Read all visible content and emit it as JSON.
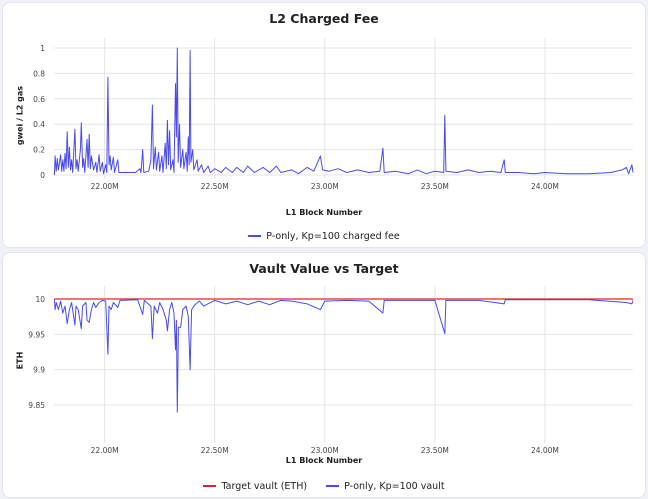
{
  "chart_data": [
    {
      "type": "line",
      "title": "L2 Charged Fee",
      "xlabel": "L1 Block Number",
      "ylabel": "gwei / L2 gas",
      "xlim": [
        21.77,
        24.4
      ],
      "ylim": [
        0,
        1.05
      ],
      "xticks": [
        {
          "v": 22.0,
          "label": "22.00M"
        },
        {
          "v": 22.5,
          "label": "22.50M"
        },
        {
          "v": 23.0,
          "label": "23.00M"
        },
        {
          "v": 23.5,
          "label": "23.50M"
        },
        {
          "v": 24.0,
          "label": "24.00M"
        }
      ],
      "yticks": [
        {
          "v": 0,
          "label": "0"
        },
        {
          "v": 0.2,
          "label": "0.2"
        },
        {
          "v": 0.4,
          "label": "0.4"
        },
        {
          "v": 0.6,
          "label": "0.6"
        },
        {
          "v": 0.8,
          "label": "0.8"
        },
        {
          "v": 1,
          "label": "1"
        }
      ],
      "grid": true,
      "legend_position": "bottom",
      "series": [
        {
          "name": "P-only, Kp=100 charged fee",
          "color": "#4a4af0",
          "points": [
            [
              21.772,
              0.0
            ],
            [
              21.775,
              0.15
            ],
            [
              21.78,
              0.03
            ],
            [
              21.785,
              0.13
            ],
            [
              21.79,
              0.04
            ],
            [
              21.8,
              0.16
            ],
            [
              21.805,
              0.03
            ],
            [
              21.81,
              0.12
            ],
            [
              21.815,
              0.03
            ],
            [
              21.82,
              0.17
            ],
            [
              21.825,
              0.05
            ],
            [
              21.83,
              0.34
            ],
            [
              21.835,
              0.06
            ],
            [
              21.84,
              0.22
            ],
            [
              21.845,
              0.04
            ],
            [
              21.85,
              0.12
            ],
            [
              21.855,
              0.02
            ],
            [
              21.865,
              0.36
            ],
            [
              21.87,
              0.05
            ],
            [
              21.875,
              0.12
            ],
            [
              21.88,
              0.03
            ],
            [
              21.89,
              0.2
            ],
            [
              21.894,
              0.41
            ],
            [
              21.9,
              0.06
            ],
            [
              21.905,
              0.13
            ],
            [
              21.91,
              0.02
            ],
            [
              21.92,
              0.28
            ],
            [
              21.925,
              0.06
            ],
            [
              21.93,
              0.32
            ],
            [
              21.935,
              0.05
            ],
            [
              21.94,
              0.15
            ],
            [
              21.95,
              0.04
            ],
            [
              21.96,
              0.1
            ],
            [
              21.965,
              0.02
            ],
            [
              21.975,
              0.16
            ],
            [
              21.98,
              0.03
            ],
            [
              21.99,
              0.1
            ],
            [
              21.995,
              0.01
            ],
            [
              22.005,
              0.08
            ],
            [
              22.01,
              0.02
            ],
            [
              22.015,
              0.77
            ],
            [
              22.02,
              0.08
            ],
            [
              22.025,
              0.15
            ],
            [
              22.03,
              0.04
            ],
            [
              22.04,
              0.14
            ],
            [
              22.045,
              0.02
            ],
            [
              22.06,
              0.12
            ],
            [
              22.065,
              0.02
            ],
            [
              22.1,
              0.02
            ],
            [
              22.14,
              0.02
            ],
            [
              22.16,
              0.05
            ],
            [
              22.165,
              0.02
            ],
            [
              22.173,
              0.2
            ],
            [
              22.178,
              0.02
            ],
            [
              22.2,
              0.03
            ],
            [
              22.21,
              0.12
            ],
            [
              22.217,
              0.55
            ],
            [
              22.222,
              0.05
            ],
            [
              22.23,
              0.22
            ],
            [
              22.235,
              0.04
            ],
            [
              22.245,
              0.18
            ],
            [
              22.25,
              0.03
            ],
            [
              22.26,
              0.15
            ],
            [
              22.265,
              0.02
            ],
            [
              22.275,
              0.25
            ],
            [
              22.28,
              0.05
            ],
            [
              22.285,
              0.43
            ],
            [
              22.29,
              0.08
            ],
            [
              22.295,
              0.35
            ],
            [
              22.3,
              0.04
            ],
            [
              22.31,
              0.12
            ],
            [
              22.315,
              0.02
            ],
            [
              22.322,
              0.72
            ],
            [
              22.326,
              0.3
            ],
            [
              22.33,
              1.0
            ],
            [
              22.334,
              0.1
            ],
            [
              22.34,
              0.4
            ],
            [
              22.345,
              0.06
            ],
            [
              22.355,
              0.2
            ],
            [
              22.36,
              0.05
            ],
            [
              22.37,
              0.18
            ],
            [
              22.375,
              0.03
            ],
            [
              22.38,
              0.3
            ],
            [
              22.384,
              0.08
            ],
            [
              22.388,
              0.98
            ],
            [
              22.392,
              0.1
            ],
            [
              22.4,
              0.2
            ],
            [
              22.405,
              0.04
            ],
            [
              22.42,
              0.12
            ],
            [
              22.425,
              0.03
            ],
            [
              22.44,
              0.08
            ],
            [
              22.45,
              0.02
            ],
            [
              22.47,
              0.07
            ],
            [
              22.48,
              0.02
            ],
            [
              22.5,
              0.05
            ],
            [
              22.53,
              0.02
            ],
            [
              22.55,
              0.06
            ],
            [
              22.58,
              0.02
            ],
            [
              22.6,
              0.06
            ],
            [
              22.63,
              0.02
            ],
            [
              22.65,
              0.07
            ],
            [
              22.68,
              0.02
            ],
            [
              22.72,
              0.06
            ],
            [
              22.75,
              0.02
            ],
            [
              22.78,
              0.07
            ],
            [
              22.8,
              0.02
            ],
            [
              22.85,
              0.04
            ],
            [
              22.88,
              0.01
            ],
            [
              22.92,
              0.06
            ],
            [
              22.95,
              0.03
            ],
            [
              22.98,
              0.15
            ],
            [
              22.99,
              0.04
            ],
            [
              23.02,
              0.03
            ],
            [
              23.06,
              0.05
            ],
            [
              23.1,
              0.02
            ],
            [
              23.15,
              0.04
            ],
            [
              23.2,
              0.02
            ],
            [
              23.25,
              0.03
            ],
            [
              23.264,
              0.21
            ],
            [
              23.27,
              0.02
            ],
            [
              23.32,
              0.03
            ],
            [
              23.38,
              0.01
            ],
            [
              23.42,
              0.04
            ],
            [
              23.46,
              0.01
            ],
            [
              23.5,
              0.03
            ],
            [
              23.54,
              0.02
            ],
            [
              23.545,
              0.47
            ],
            [
              23.55,
              0.03
            ],
            [
              23.6,
              0.02
            ],
            [
              23.65,
              0.04
            ],
            [
              23.7,
              0.02
            ],
            [
              23.75,
              0.03
            ],
            [
              23.8,
              0.02
            ],
            [
              23.815,
              0.12
            ],
            [
              23.82,
              0.02
            ],
            [
              23.88,
              0.02
            ],
            [
              23.95,
              0.01
            ],
            [
              24.0,
              0.02
            ],
            [
              24.1,
              0.01
            ],
            [
              24.2,
              0.01
            ],
            [
              24.3,
              0.02
            ],
            [
              24.35,
              0.04
            ],
            [
              24.37,
              0.06
            ],
            [
              24.38,
              0.01
            ],
            [
              24.395,
              0.08
            ],
            [
              24.4,
              0.02
            ]
          ]
        }
      ]
    },
    {
      "type": "line",
      "title": "Vault Value vs Target",
      "xlabel": "L1 Block Number",
      "ylabel": "ETH",
      "xlim": [
        21.77,
        24.4
      ],
      "ylim": [
        9.81,
        10.005
      ],
      "xticks": [
        {
          "v": 22.0,
          "label": "22.00M"
        },
        {
          "v": 22.5,
          "label": "22.50M"
        },
        {
          "v": 23.0,
          "label": "23.00M"
        },
        {
          "v": 23.5,
          "label": "23.50M"
        },
        {
          "v": 24.0,
          "label": "24.00M"
        }
      ],
      "yticks": [
        {
          "v": 9.85,
          "label": "9.85"
        },
        {
          "v": 9.9,
          "label": "9.9"
        },
        {
          "v": 9.95,
          "label": "9.95"
        },
        {
          "v": 10,
          "label": "10"
        }
      ],
      "grid": true,
      "legend_position": "bottom",
      "series": [
        {
          "name": "Target vault (ETH)",
          "color": "#d62728",
          "points": [
            [
              21.772,
              10.0
            ],
            [
              24.4,
              10.0
            ]
          ]
        },
        {
          "name": "P-only, Kp=100 vault",
          "color": "#4a4af0",
          "points": [
            [
              21.772,
              10.0
            ],
            [
              21.775,
              9.985
            ],
            [
              21.78,
              9.995
            ],
            [
              21.79,
              9.985
            ],
            [
              21.8,
              9.997
            ],
            [
              21.81,
              9.98
            ],
            [
              21.82,
              9.99
            ],
            [
              21.83,
              9.965
            ],
            [
              21.84,
              9.985
            ],
            [
              21.85,
              9.995
            ],
            [
              21.865,
              9.963
            ],
            [
              21.87,
              9.99
            ],
            [
              21.88,
              9.985
            ],
            [
              21.894,
              9.958
            ],
            [
              21.9,
              9.99
            ],
            [
              21.915,
              9.995
            ],
            [
              21.92,
              9.97
            ],
            [
              21.93,
              9.967
            ],
            [
              21.94,
              9.985
            ],
            [
              21.95,
              9.995
            ],
            [
              21.96,
              9.988
            ],
            [
              21.975,
              9.995
            ],
            [
              21.99,
              9.998
            ],
            [
              22.005,
              9.997
            ],
            [
              22.015,
              9.922
            ],
            [
              22.02,
              9.99
            ],
            [
              22.03,
              9.985
            ],
            [
              22.04,
              9.995
            ],
            [
              22.06,
              9.988
            ],
            [
              22.07,
              9.998
            ],
            [
              22.15,
              9.999
            ],
            [
              22.173,
              9.978
            ],
            [
              22.18,
              9.998
            ],
            [
              22.21,
              9.99
            ],
            [
              22.217,
              9.944
            ],
            [
              22.225,
              9.99
            ],
            [
              22.24,
              9.98
            ],
            [
              22.25,
              9.995
            ],
            [
              22.265,
              9.985
            ],
            [
              22.28,
              9.97
            ],
            [
              22.285,
              9.955
            ],
            [
              22.295,
              9.985
            ],
            [
              22.305,
              9.995
            ],
            [
              22.315,
              9.98
            ],
            [
              22.322,
              9.928
            ],
            [
              22.326,
              9.97
            ],
            [
              22.33,
              9.84
            ],
            [
              22.335,
              9.96
            ],
            [
              22.345,
              9.96
            ],
            [
              22.355,
              9.985
            ],
            [
              22.37,
              9.99
            ],
            [
              22.38,
              9.975
            ],
            [
              22.388,
              9.9
            ],
            [
              22.395,
              9.985
            ],
            [
              22.41,
              9.992
            ],
            [
              22.43,
              9.997
            ],
            [
              22.45,
              9.99
            ],
            [
              22.5,
              9.998
            ],
            [
              22.55,
              9.993
            ],
            [
              22.6,
              9.997
            ],
            [
              22.65,
              9.992
            ],
            [
              22.7,
              9.997
            ],
            [
              22.75,
              9.992
            ],
            [
              22.8,
              9.998
            ],
            [
              22.85,
              9.997
            ],
            [
              22.92,
              9.993
            ],
            [
              22.98,
              9.985
            ],
            [
              23.0,
              9.997
            ],
            [
              23.1,
              9.998
            ],
            [
              23.2,
              9.997
            ],
            [
              23.264,
              9.98
            ],
            [
              23.27,
              9.998
            ],
            [
              23.4,
              9.998
            ],
            [
              23.5,
              9.998
            ],
            [
              23.545,
              9.951
            ],
            [
              23.55,
              9.998
            ],
            [
              23.7,
              9.998
            ],
            [
              23.815,
              9.993
            ],
            [
              23.82,
              9.999
            ],
            [
              24.0,
              9.999
            ],
            [
              24.2,
              9.999
            ],
            [
              24.37,
              9.995
            ],
            [
              24.395,
              9.993
            ],
            [
              24.4,
              9.998
            ]
          ]
        }
      ]
    }
  ]
}
